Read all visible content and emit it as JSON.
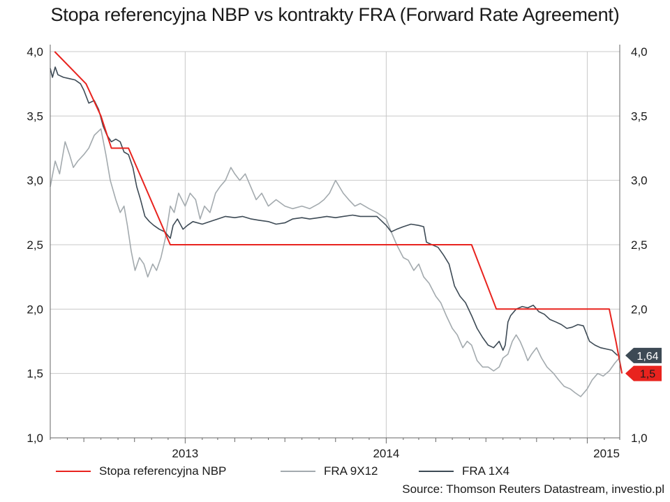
{
  "chart_data": {
    "type": "line",
    "title": "Stopa referencyjna NBP vs kontrakty FRA (Forward Rate Agreement)",
    "source": "Source: Thomson Reuters Datastream, investio.pl",
    "x_tick_labels": [
      "2013",
      "2014",
      "2015"
    ],
    "y_ticks": [
      "1,0",
      "1,5",
      "2,0",
      "2,5",
      "3,0",
      "3,5",
      "4,0"
    ],
    "ylim": [
      1.0,
      4.0
    ],
    "xlim": [
      "2012-05",
      "2015-03"
    ],
    "grid": true,
    "legend_position": "bottom",
    "series": [
      {
        "name": "Stopa referencyjna NBP",
        "color": "#e8231e",
        "points": [
          [
            "2012-05-09",
            4.0
          ],
          [
            "2012-07-05",
            3.75
          ],
          [
            "2012-08-01",
            3.5
          ],
          [
            "2012-08-20",
            3.25
          ],
          [
            "2012-09-20",
            3.25
          ],
          [
            "2012-12-05",
            2.5
          ],
          [
            "2014-02-05",
            2.5
          ],
          [
            "2014-03-15",
            2.5
          ],
          [
            "2014-05-01",
            2.5
          ],
          [
            "2014-06-05",
            2.5
          ],
          [
            "2014-07-20",
            2.0
          ],
          [
            "2014-10-10",
            2.0
          ],
          [
            "2015-02-10",
            2.0
          ],
          [
            "2015-02-22",
            1.75
          ],
          [
            "2015-03-05",
            1.5
          ]
        ],
        "end_label": "1,5"
      },
      {
        "name": "FRA 9X12",
        "color": "#a3aaae",
        "points": [
          [
            "2012-05-01",
            2.95
          ],
          [
            "2012-05-10",
            3.15
          ],
          [
            "2012-05-18",
            3.05
          ],
          [
            "2012-05-28",
            3.3
          ],
          [
            "2012-06-05",
            3.2
          ],
          [
            "2012-06-12",
            3.1
          ],
          [
            "2012-06-20",
            3.15
          ],
          [
            "2012-07-01",
            3.2
          ],
          [
            "2012-07-10",
            3.25
          ],
          [
            "2012-07-20",
            3.35
          ],
          [
            "2012-08-01",
            3.4
          ],
          [
            "2012-08-10",
            3.2
          ],
          [
            "2012-08-18",
            3.0
          ],
          [
            "2012-08-28",
            2.85
          ],
          [
            "2012-09-05",
            2.75
          ],
          [
            "2012-09-12",
            2.8
          ],
          [
            "2012-09-18",
            2.65
          ],
          [
            "2012-09-25",
            2.45
          ],
          [
            "2012-10-02",
            2.3
          ],
          [
            "2012-10-10",
            2.4
          ],
          [
            "2012-10-18",
            2.35
          ],
          [
            "2012-10-25",
            2.25
          ],
          [
            "2012-11-03",
            2.35
          ],
          [
            "2012-11-10",
            2.3
          ],
          [
            "2012-11-18",
            2.4
          ],
          [
            "2012-11-26",
            2.55
          ],
          [
            "2012-12-05",
            2.8
          ],
          [
            "2012-12-12",
            2.75
          ],
          [
            "2012-12-20",
            2.9
          ],
          [
            "2013-01-01",
            2.8
          ],
          [
            "2013-01-10",
            2.9
          ],
          [
            "2013-01-20",
            2.85
          ],
          [
            "2013-01-28",
            2.7
          ],
          [
            "2013-02-05",
            2.8
          ],
          [
            "2013-02-15",
            2.75
          ],
          [
            "2013-02-25",
            2.9
          ],
          [
            "2013-03-05",
            2.95
          ],
          [
            "2013-03-15",
            3.0
          ],
          [
            "2013-03-25",
            3.1
          ],
          [
            "2013-04-01",
            3.05
          ],
          [
            "2013-04-10",
            3.0
          ],
          [
            "2013-04-20",
            3.05
          ],
          [
            "2013-04-30",
            2.95
          ],
          [
            "2013-05-10",
            2.85
          ],
          [
            "2013-05-20",
            2.9
          ],
          [
            "2013-06-01",
            2.8
          ],
          [
            "2013-06-15",
            2.85
          ],
          [
            "2013-07-01",
            2.8
          ],
          [
            "2013-07-15",
            2.78
          ],
          [
            "2013-08-01",
            2.8
          ],
          [
            "2013-08-15",
            2.78
          ],
          [
            "2013-09-01",
            2.82
          ],
          [
            "2013-09-10",
            2.85
          ],
          [
            "2013-09-20",
            2.9
          ],
          [
            "2013-10-01",
            3.0
          ],
          [
            "2013-10-08",
            2.95
          ],
          [
            "2013-10-15",
            2.9
          ],
          [
            "2013-10-25",
            2.85
          ],
          [
            "2013-11-05",
            2.8
          ],
          [
            "2013-11-15",
            2.82
          ],
          [
            "2013-12-01",
            2.78
          ],
          [
            "2013-12-15",
            2.75
          ],
          [
            "2014-01-01",
            2.7
          ],
          [
            "2014-01-10",
            2.6
          ],
          [
            "2014-01-20",
            2.5
          ],
          [
            "2014-02-01",
            2.4
          ],
          [
            "2014-02-10",
            2.38
          ],
          [
            "2014-02-20",
            2.3
          ],
          [
            "2014-03-01",
            2.35
          ],
          [
            "2014-03-10",
            2.25
          ],
          [
            "2014-03-20",
            2.2
          ],
          [
            "2014-04-01",
            2.1
          ],
          [
            "2014-04-10",
            2.05
          ],
          [
            "2014-04-20",
            1.95
          ],
          [
            "2014-05-01",
            1.85
          ],
          [
            "2014-05-10",
            1.8
          ],
          [
            "2014-05-20",
            1.7
          ],
          [
            "2014-05-28",
            1.75
          ],
          [
            "2014-06-05",
            1.72
          ],
          [
            "2014-06-15",
            1.6
          ],
          [
            "2014-06-25",
            1.55
          ],
          [
            "2014-07-05",
            1.55
          ],
          [
            "2014-07-15",
            1.52
          ],
          [
            "2014-07-25",
            1.55
          ],
          [
            "2014-08-01",
            1.62
          ],
          [
            "2014-08-10",
            1.65
          ],
          [
            "2014-08-18",
            1.75
          ],
          [
            "2014-08-25",
            1.8
          ],
          [
            "2014-09-01",
            1.75
          ],
          [
            "2014-09-08",
            1.68
          ],
          [
            "2014-09-15",
            1.6
          ],
          [
            "2014-09-22",
            1.65
          ],
          [
            "2014-10-01",
            1.7
          ],
          [
            "2014-10-10",
            1.62
          ],
          [
            "2014-10-20",
            1.55
          ],
          [
            "2014-11-01",
            1.5
          ],
          [
            "2014-11-10",
            1.45
          ],
          [
            "2014-11-20",
            1.4
          ],
          [
            "2014-12-01",
            1.38
          ],
          [
            "2014-12-10",
            1.35
          ],
          [
            "2014-12-20",
            1.32
          ],
          [
            "2015-01-01",
            1.38
          ],
          [
            "2015-01-10",
            1.45
          ],
          [
            "2015-01-20",
            1.5
          ],
          [
            "2015-01-30",
            1.48
          ],
          [
            "2015-02-10",
            1.52
          ],
          [
            "2015-02-20",
            1.58
          ],
          [
            "2015-02-28",
            1.62
          ]
        ]
      },
      {
        "name": "FRA 1X4",
        "color": "#3d4a55",
        "points": [
          [
            "2012-05-01",
            3.87
          ],
          [
            "2012-05-05",
            3.8
          ],
          [
            "2012-05-10",
            3.88
          ],
          [
            "2012-05-15",
            3.82
          ],
          [
            "2012-05-25",
            3.8
          ],
          [
            "2012-06-05",
            3.79
          ],
          [
            "2012-06-15",
            3.78
          ],
          [
            "2012-06-25",
            3.75
          ],
          [
            "2012-07-01",
            3.7
          ],
          [
            "2012-07-10",
            3.6
          ],
          [
            "2012-07-20",
            3.62
          ],
          [
            "2012-07-28",
            3.55
          ],
          [
            "2012-08-05",
            3.42
          ],
          [
            "2012-08-12",
            3.35
          ],
          [
            "2012-08-20",
            3.3
          ],
          [
            "2012-08-28",
            3.32
          ],
          [
            "2012-09-05",
            3.3
          ],
          [
            "2012-09-12",
            3.22
          ],
          [
            "2012-09-20",
            3.2
          ],
          [
            "2012-09-28",
            3.1
          ],
          [
            "2012-10-05",
            2.95
          ],
          [
            "2012-10-12",
            2.85
          ],
          [
            "2012-10-20",
            2.72
          ],
          [
            "2012-10-28",
            2.68
          ],
          [
            "2012-11-05",
            2.65
          ],
          [
            "2012-11-15",
            2.62
          ],
          [
            "2012-11-25",
            2.6
          ],
          [
            "2012-12-05",
            2.55
          ],
          [
            "2012-12-10",
            2.65
          ],
          [
            "2012-12-18",
            2.7
          ],
          [
            "2012-12-28",
            2.62
          ],
          [
            "2013-01-05",
            2.65
          ],
          [
            "2013-01-15",
            2.68
          ],
          [
            "2013-02-01",
            2.66
          ],
          [
            "2013-02-15",
            2.68
          ],
          [
            "2013-03-01",
            2.7
          ],
          [
            "2013-03-15",
            2.72
          ],
          [
            "2013-04-01",
            2.71
          ],
          [
            "2013-04-15",
            2.72
          ],
          [
            "2013-05-01",
            2.7
          ],
          [
            "2013-05-15",
            2.69
          ],
          [
            "2013-06-01",
            2.68
          ],
          [
            "2013-06-15",
            2.66
          ],
          [
            "2013-07-01",
            2.67
          ],
          [
            "2013-07-15",
            2.7
          ],
          [
            "2013-08-01",
            2.71
          ],
          [
            "2013-08-15",
            2.7
          ],
          [
            "2013-09-01",
            2.71
          ],
          [
            "2013-09-15",
            2.72
          ],
          [
            "2013-10-01",
            2.71
          ],
          [
            "2013-10-15",
            2.72
          ],
          [
            "2013-11-01",
            2.73
          ],
          [
            "2013-11-15",
            2.72
          ],
          [
            "2013-12-01",
            2.72
          ],
          [
            "2013-12-15",
            2.72
          ],
          [
            "2014-01-01",
            2.65
          ],
          [
            "2014-01-10",
            2.6
          ],
          [
            "2014-01-20",
            2.62
          ],
          [
            "2014-02-01",
            2.64
          ],
          [
            "2014-02-15",
            2.66
          ],
          [
            "2014-03-01",
            2.65
          ],
          [
            "2014-03-10",
            2.64
          ],
          [
            "2014-03-15",
            2.52
          ],
          [
            "2014-03-25",
            2.5
          ],
          [
            "2014-04-05",
            2.48
          ],
          [
            "2014-04-15",
            2.42
          ],
          [
            "2014-04-25",
            2.35
          ],
          [
            "2014-05-05",
            2.18
          ],
          [
            "2014-05-15",
            2.1
          ],
          [
            "2014-05-25",
            2.05
          ],
          [
            "2014-06-05",
            1.95
          ],
          [
            "2014-06-15",
            1.85
          ],
          [
            "2014-06-25",
            1.78
          ],
          [
            "2014-07-05",
            1.72
          ],
          [
            "2014-07-15",
            1.7
          ],
          [
            "2014-07-25",
            1.75
          ],
          [
            "2014-08-01",
            1.68
          ],
          [
            "2014-08-05",
            1.72
          ],
          [
            "2014-08-10",
            1.9
          ],
          [
            "2014-08-15",
            1.95
          ],
          [
            "2014-08-25",
            2.0
          ],
          [
            "2014-09-05",
            2.02
          ],
          [
            "2014-09-15",
            2.01
          ],
          [
            "2014-09-25",
            2.03
          ],
          [
            "2014-10-05",
            1.98
          ],
          [
            "2014-10-15",
            1.96
          ],
          [
            "2014-10-25",
            1.92
          ],
          [
            "2014-11-05",
            1.9
          ],
          [
            "2014-11-15",
            1.88
          ],
          [
            "2014-11-25",
            1.85
          ],
          [
            "2014-12-05",
            1.86
          ],
          [
            "2014-12-15",
            1.88
          ],
          [
            "2014-12-25",
            1.87
          ],
          [
            "2015-01-05",
            1.75
          ],
          [
            "2015-01-15",
            1.72
          ],
          [
            "2015-01-25",
            1.7
          ],
          [
            "2015-02-05",
            1.69
          ],
          [
            "2015-02-15",
            1.68
          ],
          [
            "2015-02-25",
            1.64
          ]
        ],
        "end_label": "1,64"
      }
    ]
  }
}
